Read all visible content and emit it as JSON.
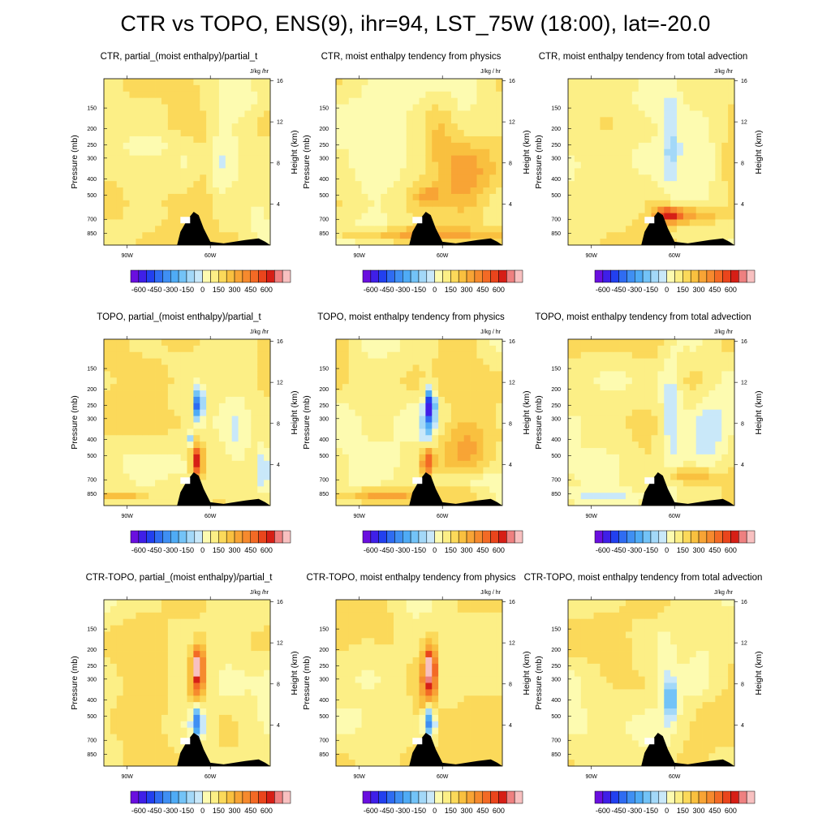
{
  "title": "CTR vs TOPO, ENS(9), ihr=94, LST_75W (18:00), lat=-20.0",
  "colors": {
    "palette": [
      "#6a0fdf",
      "#3f1fe8",
      "#2240ef",
      "#2f6cf2",
      "#3f8ff3",
      "#4fabf5",
      "#73c3f7",
      "#a3d8f8",
      "#c9e8f9",
      "#fdfbb0",
      "#fcef86",
      "#fbd95a",
      "#f9c03f",
      "#f8a435",
      "#f68a2e",
      "#f36a25",
      "#ea451c",
      "#d61f16",
      "#ee8080",
      "#f8c0c0"
    ],
    "mountain": "#000000"
  },
  "chart_data": [
    {
      "type": "heatmap",
      "title": "CTR, partial_(moist enthalpy)/partial_t",
      "units": "J/kg /hr",
      "ylabel": "Pressure (mb)",
      "y2label": "Height (km)",
      "xticks": [
        "90W",
        "60W"
      ],
      "yticks": [
        "150",
        "200",
        "250",
        "300",
        "400",
        "500",
        "700",
        "850"
      ],
      "y2ticks": [
        "16",
        "12",
        "8",
        "4"
      ],
      "colorbar_labels": [
        "-600",
        "-450",
        "-300",
        "-150",
        "0",
        "150",
        "300",
        "450",
        "600"
      ],
      "colorbar_range": [
        -650,
        650
      ],
      "features": [
        [
          0.25,
          0.6,
          0.15,
          0.05,
          -60
        ],
        [
          0.58,
          0.5,
          0.06,
          0.2,
          80
        ],
        [
          0.72,
          0.4,
          0.08,
          0.3,
          -90
        ],
        [
          0.5,
          0.25,
          0.1,
          0.06,
          50
        ],
        [
          0.9,
          0.2,
          0.1,
          0.12,
          -80
        ],
        [
          0.85,
          0.85,
          0.12,
          0.1,
          -60
        ],
        [
          0.4,
          0.45,
          0.1,
          0.25,
          30
        ]
      ]
    },
    {
      "type": "heatmap",
      "title": "CTR, moist enthalpy tendency from physics",
      "units": "J/kg / hr",
      "ylabel": "Pressure (mb)",
      "y2label": "Height (km)",
      "xticks": [
        "90W",
        "60W"
      ],
      "yticks": [
        "150",
        "200",
        "250",
        "300",
        "400",
        "500",
        "700",
        "850"
      ],
      "y2ticks": [
        "16",
        "12",
        "8",
        "4"
      ],
      "colorbar_labels": [
        "-600",
        "-450",
        "-300",
        "-150",
        "0",
        "150",
        "300",
        "450",
        "600"
      ],
      "colorbar_range": [
        -650,
        650
      ],
      "features": [
        [
          0.2,
          0.5,
          0.3,
          0.6,
          -50
        ],
        [
          0.78,
          0.45,
          0.2,
          0.2,
          200
        ],
        [
          0.62,
          0.7,
          0.1,
          0.18,
          120
        ],
        [
          0.5,
          0.06,
          0.5,
          0.04,
          200
        ],
        [
          0.55,
          0.3,
          0.08,
          0.05,
          150
        ]
      ]
    },
    {
      "type": "heatmap",
      "title": "CTR, moist enthalpy tendency from total advection",
      "units": "J/kg /hr",
      "ylabel": "Pressure (mb)",
      "y2label": "Height (km)",
      "xticks": [
        "90W",
        "60W"
      ],
      "yticks": [
        "150",
        "200",
        "250",
        "300",
        "400",
        "500",
        "700",
        "850"
      ],
      "y2ticks": [
        "16",
        "12",
        "8",
        "4"
      ],
      "colorbar_labels": [
        "-600",
        "-450",
        "-300",
        "-150",
        "0",
        "150",
        "300",
        "450",
        "600"
      ],
      "colorbar_range": [
        -650,
        650
      ],
      "features": [
        [
          0.62,
          0.6,
          0.06,
          0.3,
          -150
        ],
        [
          0.8,
          0.5,
          0.1,
          0.25,
          -100
        ],
        [
          0.6,
          0.18,
          0.08,
          0.05,
          400
        ],
        [
          0.75,
          0.18,
          0.15,
          0.05,
          200
        ],
        [
          0.25,
          0.5,
          0.2,
          0.15,
          40
        ],
        [
          0.5,
          0.85,
          0.2,
          0.1,
          -40
        ]
      ]
    },
    {
      "type": "heatmap",
      "title": "TOPO, partial_(moist enthalpy)/partial_t",
      "units": "J/kg /hr",
      "ylabel": "Pressure (mb)",
      "y2label": "Height (km)",
      "xticks": [
        "90W",
        "60W"
      ],
      "yticks": [
        "150",
        "200",
        "250",
        "300",
        "400",
        "500",
        "700",
        "850"
      ],
      "y2ticks": [
        "16",
        "12",
        "8",
        "4"
      ],
      "colorbar_labels": [
        "-600",
        "-450",
        "-300",
        "-150",
        "0",
        "150",
        "300",
        "450",
        "600"
      ],
      "colorbar_range": [
        -650,
        650
      ],
      "features": [
        [
          0.57,
          0.6,
          0.025,
          0.1,
          -550
        ],
        [
          0.56,
          0.27,
          0.035,
          0.1,
          480
        ],
        [
          0.52,
          0.4,
          0.03,
          0.05,
          -200
        ],
        [
          0.45,
          0.75,
          0.15,
          0.1,
          60
        ],
        [
          0.8,
          0.4,
          0.08,
          0.25,
          -80
        ],
        [
          0.1,
          0.06,
          0.15,
          0.03,
          150
        ],
        [
          0.96,
          0.2,
          0.03,
          0.15,
          -200
        ]
      ]
    },
    {
      "type": "heatmap",
      "title": "TOPO, moist enthalpy tendency from physics",
      "units": "J/kg / hr",
      "ylabel": "Pressure (mb)",
      "y2label": "Height (km)",
      "xticks": [
        "90W",
        "60W"
      ],
      "yticks": [
        "150",
        "200",
        "250",
        "300",
        "400",
        "500",
        "700",
        "850"
      ],
      "y2ticks": [
        "16",
        "12",
        "8",
        "4"
      ],
      "colorbar_labels": [
        "-600",
        "-450",
        "-300",
        "-150",
        "0",
        "150",
        "300",
        "450",
        "600"
      ],
      "colorbar_range": [
        -650,
        650
      ],
      "features": [
        [
          0.2,
          0.5,
          0.3,
          0.6,
          -50
        ],
        [
          0.57,
          0.6,
          0.025,
          0.1,
          -550
        ],
        [
          0.55,
          0.27,
          0.035,
          0.1,
          450
        ],
        [
          0.55,
          0.45,
          0.04,
          0.25,
          -200
        ],
        [
          0.78,
          0.4,
          0.15,
          0.2,
          180
        ],
        [
          0.3,
          0.06,
          0.3,
          0.04,
          200
        ],
        [
          0.8,
          0.15,
          0.2,
          0.06,
          -120
        ]
      ]
    },
    {
      "type": "heatmap",
      "title": "TOPO, moist enthalpy tendency from total advection",
      "units": "J/kg /hr",
      "ylabel": "Pressure (mb)",
      "y2label": "Height (km)",
      "xticks": [
        "90W",
        "60W"
      ],
      "yticks": [
        "150",
        "200",
        "250",
        "300",
        "400",
        "500",
        "700",
        "850"
      ],
      "y2ticks": [
        "16",
        "12",
        "8",
        "4"
      ],
      "colorbar_labels": [
        "-600",
        "-450",
        "-300",
        "-150",
        "0",
        "150",
        "300",
        "450",
        "600"
      ],
      "colorbar_range": [
        -650,
        650
      ],
      "features": [
        [
          0.62,
          0.55,
          0.06,
          0.35,
          -150
        ],
        [
          0.85,
          0.45,
          0.1,
          0.2,
          -150
        ],
        [
          0.75,
          0.18,
          0.15,
          0.05,
          200
        ],
        [
          0.3,
          0.5,
          0.2,
          0.2,
          40
        ],
        [
          0.2,
          0.06,
          0.2,
          0.03,
          -120
        ]
      ]
    },
    {
      "type": "heatmap",
      "title": "CTR-TOPO, partial_(moist enthalpy)/partial_t",
      "units": "J/kg /hr",
      "ylabel": "Pressure (mb)",
      "y2label": "Height (km)",
      "xticks": [
        "90W",
        "60W"
      ],
      "yticks": [
        "150",
        "200",
        "250",
        "300",
        "400",
        "500",
        "700",
        "850"
      ],
      "y2ticks": [
        "16",
        "12",
        "8",
        "4"
      ],
      "colorbar_labels": [
        "-600",
        "-450",
        "-300",
        "-150",
        "0",
        "150",
        "300",
        "450",
        "600"
      ],
      "colorbar_range": [
        -650,
        650
      ],
      "features": [
        [
          0.57,
          0.58,
          0.04,
          0.15,
          350
        ],
        [
          0.56,
          0.6,
          0.02,
          0.05,
          600
        ],
        [
          0.56,
          0.27,
          0.035,
          0.1,
          -450
        ],
        [
          0.55,
          0.45,
          0.05,
          0.2,
          150
        ],
        [
          0.75,
          0.5,
          0.1,
          0.2,
          -40
        ],
        [
          0.2,
          0.5,
          0.2,
          0.3,
          30
        ]
      ]
    },
    {
      "type": "heatmap",
      "title": "CTR-TOPO, moist enthalpy tendency from physics",
      "units": "J/kg / hr",
      "ylabel": "Pressure (mb)",
      "y2label": "Height (km)",
      "xticks": [
        "90W",
        "60W"
      ],
      "yticks": [
        "150",
        "200",
        "250",
        "300",
        "400",
        "500",
        "700",
        "850"
      ],
      "y2ticks": [
        "16",
        "12",
        "8",
        "4"
      ],
      "colorbar_labels": [
        "-600",
        "-450",
        "-300",
        "-150",
        "0",
        "150",
        "300",
        "450",
        "600"
      ],
      "colorbar_range": [
        -650,
        650
      ],
      "features": [
        [
          0.57,
          0.58,
          0.04,
          0.15,
          350
        ],
        [
          0.56,
          0.6,
          0.02,
          0.05,
          600
        ],
        [
          0.56,
          0.27,
          0.035,
          0.1,
          -500
        ],
        [
          0.55,
          0.45,
          0.05,
          0.2,
          200
        ],
        [
          0.2,
          0.6,
          0.15,
          0.2,
          -40
        ],
        [
          0.8,
          0.5,
          0.1,
          0.2,
          60
        ]
      ]
    },
    {
      "type": "heatmap",
      "title": "CTR-TOPO, moist enthalpy tendency from total advection",
      "units": "J/kg /hr",
      "ylabel": "Pressure (mb)",
      "y2label": "Height (km)",
      "xticks": [
        "90W",
        "60W"
      ],
      "yticks": [
        "150",
        "200",
        "250",
        "300",
        "400",
        "500",
        "700",
        "850"
      ],
      "y2ticks": [
        "16",
        "12",
        "8",
        "4"
      ],
      "colorbar_labels": [
        "-600",
        "-450",
        "-300",
        "-150",
        "0",
        "150",
        "300",
        "450",
        "600"
      ],
      "colorbar_range": [
        -650,
        650
      ],
      "features": [
        [
          0.6,
          0.5,
          0.05,
          0.3,
          -100
        ],
        [
          0.62,
          0.4,
          0.04,
          0.1,
          -250
        ],
        [
          0.8,
          0.7,
          0.1,
          0.2,
          -60
        ],
        [
          0.3,
          0.5,
          0.2,
          0.2,
          30
        ],
        [
          0.85,
          0.3,
          0.1,
          0.15,
          40
        ]
      ]
    }
  ]
}
